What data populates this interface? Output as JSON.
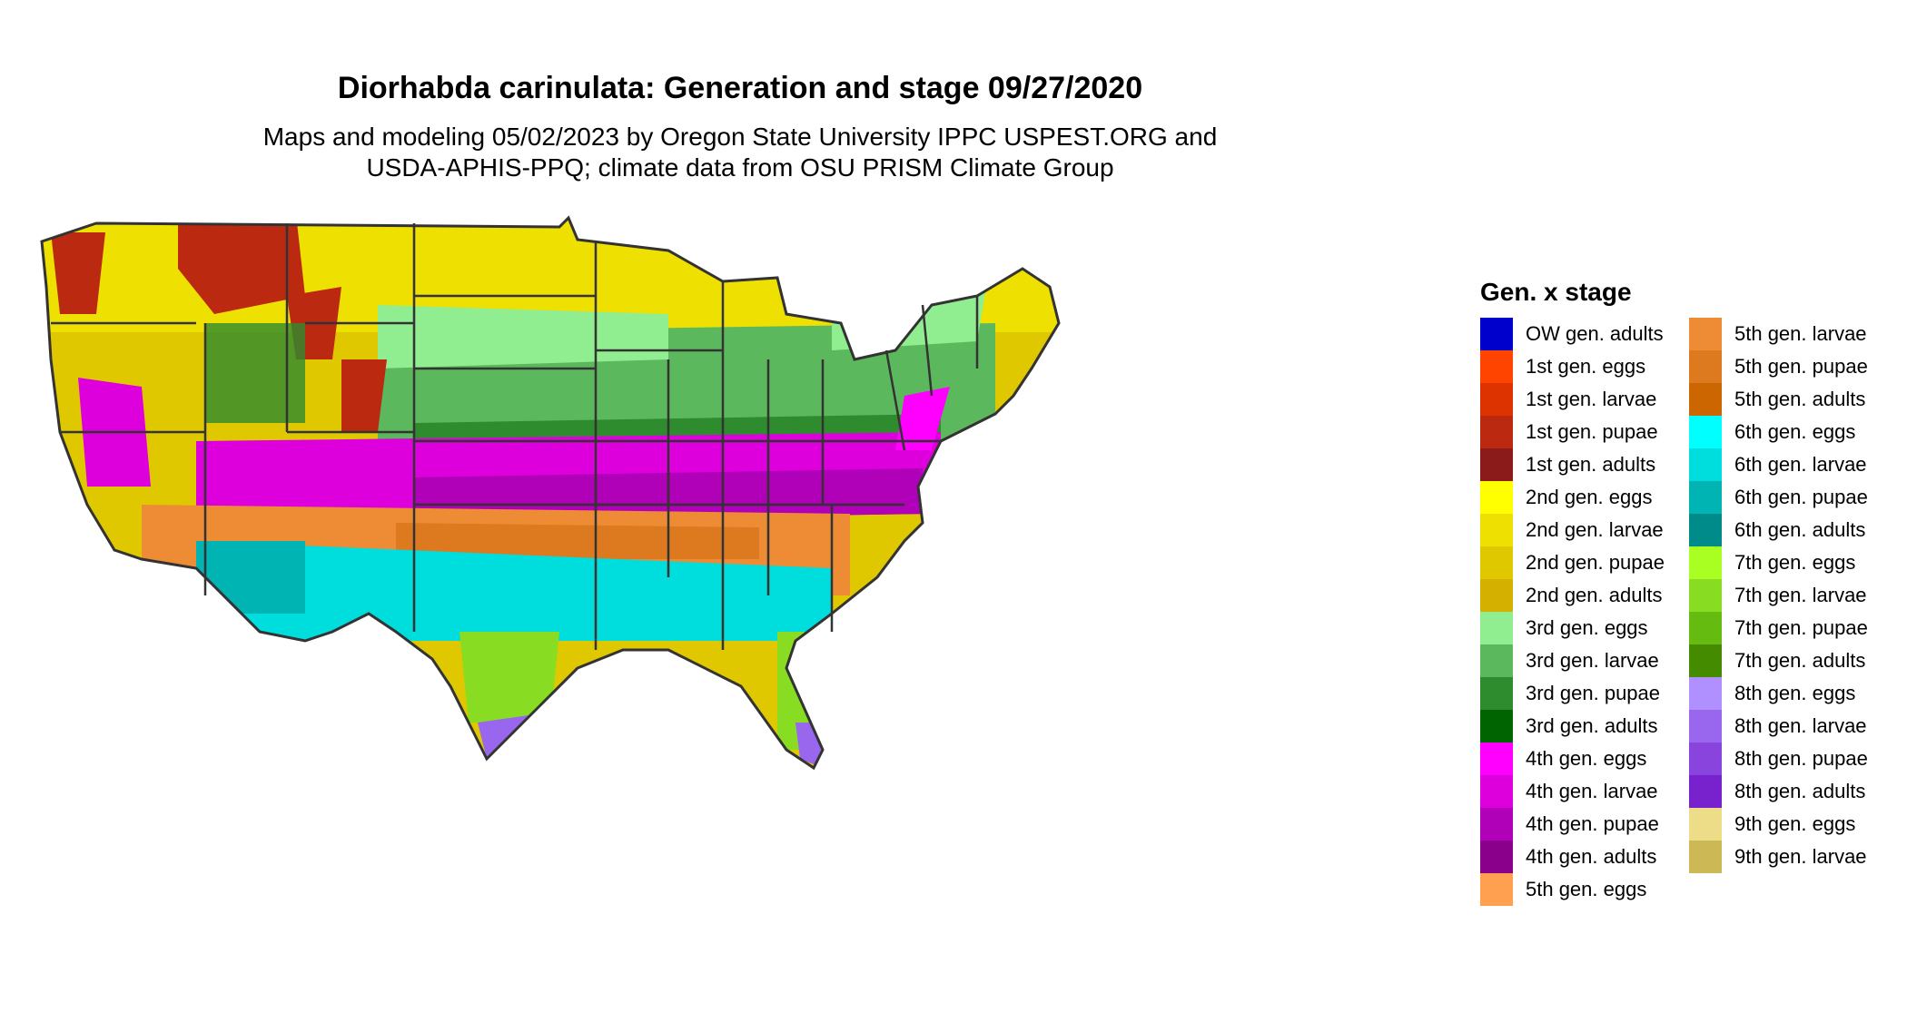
{
  "title": "Diorhabda carinulata: Generation and stage 09/27/2020",
  "subtitle_line1": "Maps and modeling 05/02/2023 by Oregon State University IPPC USPEST.ORG and",
  "subtitle_line2": "USDA-APHIS-PPQ; climate data from OSU PRISM Climate Group",
  "legend": {
    "title": "Gen. x stage",
    "items": [
      {
        "label": "OW gen. adults",
        "color": "#0000cc"
      },
      {
        "label": "1st gen. eggs",
        "color": "#ff4400"
      },
      {
        "label": "1st gen. larvae",
        "color": "#dd3300"
      },
      {
        "label": "1st gen. pupae",
        "color": "#bb2a10"
      },
      {
        "label": "1st gen. adults",
        "color": "#8b1a1a"
      },
      {
        "label": "2nd gen. eggs",
        "color": "#ffff00"
      },
      {
        "label": "2nd gen. larvae",
        "color": "#eee000"
      },
      {
        "label": "2nd gen. pupae",
        "color": "#e0c800"
      },
      {
        "label": "2nd gen. adults",
        "color": "#d4b000"
      },
      {
        "label": "3rd gen. eggs",
        "color": "#90ee90"
      },
      {
        "label": "3rd gen. larvae",
        "color": "#5cb85c"
      },
      {
        "label": "3rd gen. pupae",
        "color": "#2e8b2e"
      },
      {
        "label": "3rd gen. adults",
        "color": "#006400"
      },
      {
        "label": "4th gen. eggs",
        "color": "#ff00ff"
      },
      {
        "label": "4th gen. larvae",
        "color": "#dd00dd"
      },
      {
        "label": "4th gen. pupae",
        "color": "#b000b8"
      },
      {
        "label": "4th gen. adults",
        "color": "#8b008b"
      },
      {
        "label": "5th gen. eggs",
        "color": "#ffa050"
      },
      {
        "label": "5th gen. larvae",
        "color": "#ee8c35"
      },
      {
        "label": "5th gen. pupae",
        "color": "#dd7a20"
      },
      {
        "label": "5th gen. adults",
        "color": "#cc6600"
      },
      {
        "label": "6th gen. eggs",
        "color": "#00ffff"
      },
      {
        "label": "6th gen. larvae",
        "color": "#00dddd"
      },
      {
        "label": "6th gen. pupae",
        "color": "#00b4b4"
      },
      {
        "label": "6th gen. adults",
        "color": "#008b8b"
      },
      {
        "label": "7th gen. eggs",
        "color": "#aaff22"
      },
      {
        "label": "7th gen. larvae",
        "color": "#88dd22"
      },
      {
        "label": "7th gen. pupae",
        "color": "#66bb11"
      },
      {
        "label": "7th gen. adults",
        "color": "#448b00"
      },
      {
        "label": "8th gen. eggs",
        "color": "#b090ff"
      },
      {
        "label": "8th gen. larvae",
        "color": "#9966ee"
      },
      {
        "label": "8th gen. pupae",
        "color": "#8844dd"
      },
      {
        "label": "8th gen. adults",
        "color": "#7722cc"
      },
      {
        "label": "9th gen. eggs",
        "color": "#eedd88"
      },
      {
        "label": "9th gen. larvae",
        "color": "#ccb855"
      }
    ]
  }
}
